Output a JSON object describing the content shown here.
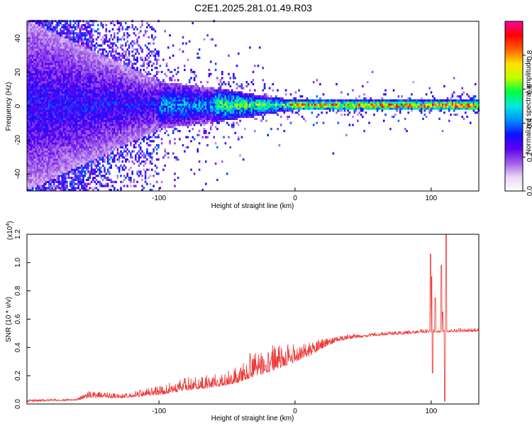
{
  "title": "C2E1.2025.281.01.49.R03",
  "chart_data": [
    {
      "type": "heatmap",
      "name": "spectrogram",
      "xlabel": "Height of straight line (km)",
      "ylabel": "Frequency (Hz)",
      "xlim": [
        -197,
        135
      ],
      "ylim": [
        -50,
        50
      ],
      "xticks": [
        -100,
        0,
        100
      ],
      "yticks": [
        -40,
        -20,
        0,
        20,
        40
      ],
      "colorbar": {
        "label": "Normalized spectral amplitude",
        "range": [
          0,
          1
        ],
        "ticks": [
          "0.0",
          "0.2",
          "0.4",
          "0.6",
          "0.8"
        ],
        "tick_values": [
          0.0,
          0.2,
          0.4,
          0.6,
          0.8
        ],
        "colors": [
          "#ffffff",
          "#e9d5f5",
          "#a05ce8",
          "#5a00f0",
          "#1010ff",
          "#0090ff",
          "#00e8e0",
          "#00ff40",
          "#c0ff00",
          "#ffe000",
          "#ff6000",
          "#ff0000",
          "#ff00a0"
        ]
      },
      "band": {
        "description": "energy concentrated near 0 Hz, widening toward negative heights",
        "centre_hz": 0,
        "half_width_hz_at": [
          [
            -197,
            50
          ],
          [
            -100,
            14
          ],
          [
            -50,
            9
          ],
          [
            -20,
            5
          ],
          [
            0,
            3
          ],
          [
            100,
            3
          ],
          [
            135,
            3
          ]
        ]
      }
    },
    {
      "type": "line",
      "name": "snr",
      "xlabel": "Height of straight line (km)",
      "ylabel": "SNR (10 * v/v)",
      "multiplier": "(x10",
      "multiplier_exp": "4",
      "multiplier_close": ")",
      "xlim": [
        -197,
        135
      ],
      "ylim": [
        0,
        1.2
      ],
      "xticks": [
        -100,
        0,
        100
      ],
      "yticks": [
        "0.0",
        "0.2",
        "0.4",
        "0.6",
        "0.8",
        "1.0",
        "1.2"
      ],
      "ytick_values": [
        0.0,
        0.2,
        0.4,
        0.6,
        0.8,
        1.0,
        1.2
      ],
      "color": "#ee3333",
      "envelope": {
        "x": [
          -197,
          -160,
          -150,
          -130,
          -100,
          -80,
          -60,
          -45,
          -30,
          -20,
          -10,
          0,
          10,
          20,
          30,
          40,
          60,
          80,
          95,
          135
        ],
        "y": [
          0.02,
          0.03,
          0.06,
          0.05,
          0.08,
          0.12,
          0.14,
          0.17,
          0.24,
          0.27,
          0.3,
          0.33,
          0.36,
          0.41,
          0.45,
          0.47,
          0.49,
          0.5,
          0.51,
          0.52
        ],
        "noise": [
          0.01,
          0.01,
          0.03,
          0.02,
          0.04,
          0.06,
          0.06,
          0.07,
          0.12,
          0.12,
          0.1,
          0.08,
          0.06,
          0.04,
          0.03,
          0.02,
          0.015,
          0.015,
          0.015,
          0.015
        ]
      },
      "spikes": [
        {
          "x": 99.5,
          "y": 1.06
        },
        {
          "x": 100.5,
          "y": 0.9
        },
        {
          "x": 101,
          "y": 0.22
        },
        {
          "x": 103,
          "y": 0.75
        },
        {
          "x": 107.5,
          "y": 0.98
        },
        {
          "x": 108.5,
          "y": 0.65
        },
        {
          "x": 110,
          "y": 0.02
        },
        {
          "x": 111,
          "y": 1.2
        }
      ]
    }
  ]
}
